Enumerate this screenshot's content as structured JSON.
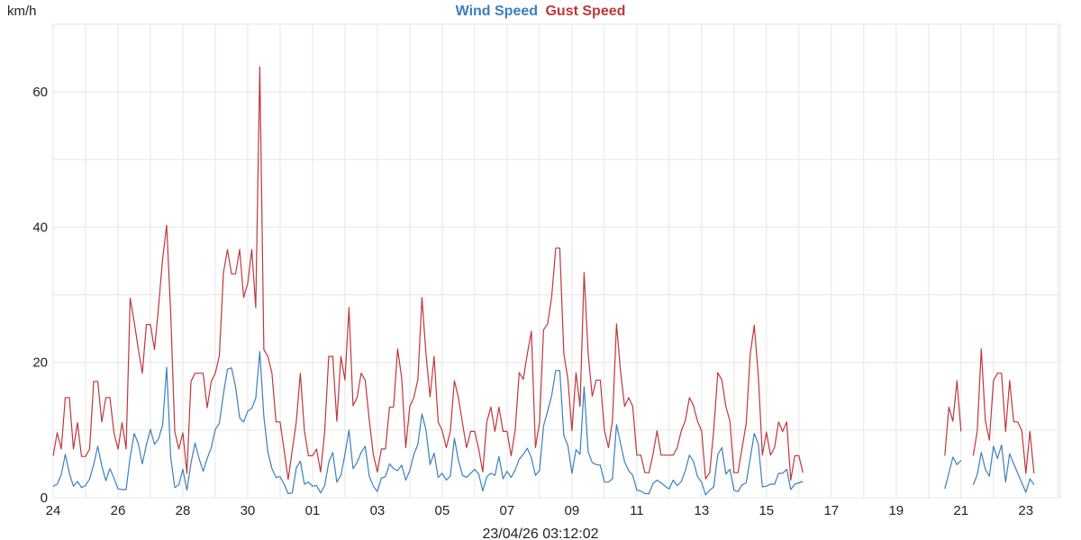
{
  "chart_data": {
    "type": "line",
    "title_parts": [
      {
        "text": "Wind Speed",
        "color": "#3b7fbf"
      },
      {
        "text": "Gust Speed",
        "color": "#c0373a"
      }
    ],
    "ylabel": "km/h",
    "xlabel": "23/04/26 03:12:02",
    "ylim": [
      0,
      70
    ],
    "y_ticks": [
      0,
      20,
      40,
      60
    ],
    "y_grid_step": 10,
    "xlim": [
      "2026-03-24T00:00",
      "2026-04-24T01:30"
    ],
    "x_tick_labels": [
      "24",
      "26",
      "28",
      "30",
      "01",
      "03",
      "05",
      "07",
      "09",
      "11",
      "13",
      "15",
      "17",
      "19",
      "21",
      "23"
    ],
    "x_tick_dates": [
      "2026-03-24",
      "2026-03-26",
      "2026-03-28",
      "2026-03-30",
      "2026-04-01",
      "2026-04-03",
      "2026-04-05",
      "2026-04-07",
      "2026-04-09",
      "2026-04-11",
      "2026-04-13",
      "2026-04-15",
      "2026-04-17",
      "2026-04-19",
      "2026-04-21",
      "2026-04-23"
    ],
    "grid": true,
    "x_start": "2026-03-24T00:00",
    "x_interval_hours": 3,
    "series": [
      {
        "name": "Wind Speed",
        "color": "#3b7fbf",
        "segments": [
          {
            "start_index": 0,
            "values": [
              1.7,
              2,
              3.4,
              6.4,
              3.6,
              1.7,
              2.4,
              1.5,
              1.8,
              2.8,
              4.9,
              7.6,
              4.7,
              2.5,
              4.3,
              2.9,
              1.3,
              1.2,
              1.2,
              6,
              9.5,
              8,
              5,
              7.8,
              10.1,
              7.9,
              8.7,
              10.7,
              19.3,
              6,
              1.5,
              1.9,
              4.2,
              1.1,
              5.1,
              8.1,
              5.8,
              3.9,
              5.8,
              7.4,
              10.1,
              11,
              15.3,
              19,
              19.2,
              16.4,
              11.8,
              11.2,
              12.8,
              13.2,
              14.7,
              21.6,
              12,
              6.7,
              4.3,
              3,
              3.1,
              2,
              0.6,
              0.7,
              4.4,
              5.4,
              2,
              2.3,
              1.7,
              1.8,
              0.7,
              1.8,
              5.2,
              6.7,
              2.3,
              3.3,
              6.4,
              10,
              4.3,
              5.2,
              6.7,
              7.6,
              3.2,
              1.7,
              0.9,
              2.9,
              3.1,
              5,
              4.3,
              4,
              4.8,
              2.6,
              4,
              6.4,
              7.9,
              12.4,
              10,
              4.9,
              6.6,
              3,
              3.6,
              2.6,
              3.2,
              8.8,
              5.5,
              3.3,
              3,
              3.6,
              4.2,
              3.5,
              1,
              3.1,
              3.6,
              3.3,
              6.1,
              2.8,
              3.9,
              3,
              4.1,
              5.7,
              6.4,
              7.3,
              5.9,
              3.3,
              4,
              10.6,
              12.8,
              15.1,
              18.8,
              18.8,
              9.2,
              7.7,
              3.6,
              7.1,
              6.4,
              16.4,
              6.8,
              5.2,
              4.9,
              4.8,
              2.3,
              2.3,
              2.8,
              10.8,
              8,
              5.3,
              4,
              3.3,
              1.1,
              1,
              0.6,
              0.6,
              2.1,
              2.6,
              2.2,
              1.7,
              1.3,
              2.6,
              1.8,
              2.4,
              4,
              6.3,
              5.4,
              3.1,
              2.3,
              0.4,
              1.1,
              1.6,
              6.4,
              7.4,
              3.5,
              4.2,
              1.1,
              0.9,
              1.9,
              2.2,
              5.8,
              9.5,
              7.9,
              1.6,
              1.7,
              2,
              2,
              3.6,
              3.6,
              4.2,
              1.2,
              2,
              2.2,
              2.4
            ]
          },
          {
            "start_index": 220,
            "values": [
              1.3,
              3.6,
              6,
              4.9,
              5.5
            ]
          },
          {
            "start_index": 227,
            "values": [
              1.9,
              3.4,
              6.7,
              4.2,
              3.2,
              7.6,
              5.8,
              7.8,
              2.3,
              6.5,
              5,
              3.6,
              2.2,
              0.8,
              2.8,
              1.9
            ]
          }
        ]
      },
      {
        "name": "Gust Speed",
        "color": "#c0373a",
        "segments": [
          {
            "start_index": 0,
            "values": [
              6.2,
              9.6,
              7.2,
              14.8,
              14.8,
              7.2,
              11.1,
              6.1,
              6.1,
              7.2,
              17.2,
              17.2,
              11.2,
              14.8,
              14.8,
              9.6,
              7.2,
              11.1,
              7.2,
              29.5,
              26,
              22,
              18.4,
              25.6,
              25.6,
              21.9,
              28.2,
              35.3,
              40.3,
              27.3,
              9.8,
              7.2,
              9.6,
              3.6,
              17.2,
              18.4,
              18.4,
              18.4,
              13.3,
              17.2,
              18.4,
              21,
              33.2,
              36.7,
              33.1,
              33.1,
              36.7,
              29.6,
              31.7,
              36.7,
              28.1,
              63.7,
              21.9,
              20.9,
              18.4,
              11.2,
              11.2,
              7,
              2.7,
              7,
              11.2,
              18.4,
              9.9,
              6.2,
              6.2,
              7.2,
              3.8,
              9.7,
              20.9,
              20.9,
              11.3,
              20.9,
              17.4,
              28.1,
              13.6,
              14.8,
              18.4,
              17.4,
              11.5,
              6.4,
              3.8,
              7.2,
              7.2,
              13.4,
              13.4,
              22,
              17.7,
              7.4,
              13.5,
              14.8,
              17.5,
              29.6,
              21.2,
              14.9,
              20.9,
              11.2,
              9.9,
              7.4,
              9.8,
              17.3,
              14.8,
              11,
              7.4,
              9.8,
              9.8,
              7.2,
              3.8,
              11.2,
              13.4,
              9.8,
              13.4,
              9.8,
              9.8,
              6.2,
              10,
              18.5,
              17.5,
              21.3,
              24.6,
              7.4,
              11.1,
              24.8,
              25.7,
              29.7,
              36.9,
              36.9,
              21.3,
              17.5,
              9.9,
              18.5,
              13.5,
              33.3,
              21.3,
              15,
              17.4,
              17.4,
              10,
              7.4,
              11.4,
              25.7,
              18.6,
              13.5,
              14.8,
              13.5,
              6.3,
              6.3,
              3.7,
              3.7,
              6.4,
              9.9,
              6.3,
              6.3,
              6.3,
              6.3,
              7.4,
              9.9,
              11.4,
              14.8,
              13.6,
              11.3,
              9.9,
              2.8,
              3.7,
              10,
              18.5,
              17.4,
              13.5,
              11.3,
              3.7,
              3.7,
              7.4,
              10.9,
              21.2,
              25.5,
              18,
              6.3,
              9.7,
              6.3,
              7.4,
              11.2,
              9.8,
              11.2,
              2.6,
              6.2,
              6.2,
              3.7
            ]
          },
          {
            "start_index": 220,
            "values": [
              6.2,
              13.4,
              11.3,
              17.3,
              9.8
            ]
          },
          {
            "start_index": 227,
            "values": [
              6.2,
              9.8,
              22,
              11.4,
              8.5,
              17.3,
              18.4,
              18.4,
              9.8,
              17.3,
              11.2,
              11.2,
              9.9,
              3.6,
              9.8,
              3.6
            ]
          }
        ]
      }
    ]
  }
}
